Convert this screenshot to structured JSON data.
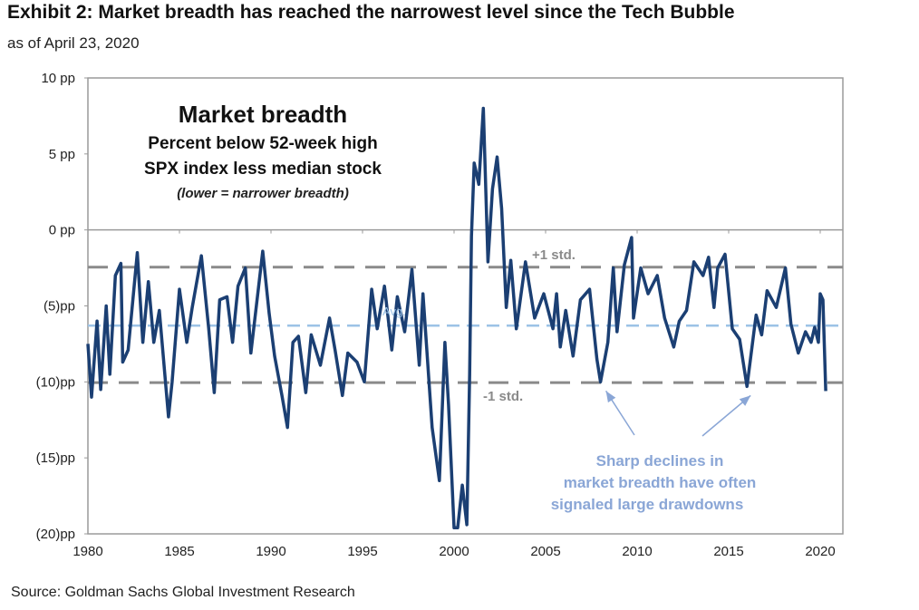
{
  "header": {
    "title": "Exhibit 2: Market breadth has reached the narrowest level since the Tech Bubble",
    "subtitle": "as of April 23, 2020"
  },
  "footer": {
    "source": "Source: Goldman Sachs Global Investment Research"
  },
  "colors": {
    "series": "#1b3f73",
    "avg": "#9cc3e6",
    "std": "#8a8a8a",
    "annotation": "#8aa6d6"
  },
  "chart_data": {
    "type": "line",
    "title": "Market breadth",
    "subtitle_lines": [
      "Percent below 52-week high",
      "SPX index less median stock",
      "(lower = narrower  breadth)"
    ],
    "xlabel": "",
    "ylabel": "",
    "xlim": [
      1980,
      2021.2
    ],
    "ylim": [
      -20,
      10
    ],
    "x_ticks": [
      1980,
      1985,
      1990,
      1995,
      2000,
      2005,
      2010,
      2015,
      2020
    ],
    "x_tick_labels": [
      "1980",
      "1985",
      "1990",
      "1995",
      "2000",
      "2005",
      "2010",
      "2015",
      "2020"
    ],
    "y_ticks": [
      10,
      5,
      0,
      -5,
      -10,
      -15,
      -20
    ],
    "y_tick_labels": [
      "10 pp",
      "5 pp",
      "0 pp",
      "(5)pp",
      "(10)pp",
      "(15)pp",
      "(20)pp"
    ],
    "reference_lines": [
      {
        "name": "+1 std.",
        "label": "+1 std.",
        "value": -2.45
      },
      {
        "name": "Avg.",
        "label": "Avg.",
        "value": -6.3
      },
      {
        "name": "-1 std.",
        "label": "-1 std.",
        "value": -10.05
      }
    ],
    "annotation": {
      "lines": [
        "Sharp declines in",
        "market breadth have often",
        "signaled large drawdowns"
      ],
      "arrow_targets": [
        [
          2008.0,
          -10.0
        ],
        [
          2016.0,
          -10.3
        ]
      ]
    },
    "series": [
      {
        "name": "Market breadth",
        "x": [
          1980.0,
          1980.2,
          1980.5,
          1980.7,
          1981.0,
          1981.2,
          1981.5,
          1981.8,
          1981.9,
          1982.2,
          1982.7,
          1983.0,
          1983.3,
          1983.6,
          1983.9,
          1984.4,
          1984.6,
          1985.0,
          1985.4,
          1985.7,
          1986.2,
          1986.6,
          1986.9,
          1987.2,
          1987.6,
          1987.9,
          1988.2,
          1988.6,
          1988.9,
          1989.55,
          1989.9,
          1990.2,
          1990.6,
          1990.9,
          1991.2,
          1991.5,
          1991.9,
          1992.2,
          1992.7,
          1993.2,
          1993.5,
          1993.9,
          1994.2,
          1994.7,
          1995.1,
          1995.5,
          1995.8,
          1996.2,
          1996.6,
          1996.9,
          1997.3,
          1997.7,
          1998.1,
          1998.3,
          1998.8,
          1999.2,
          1999.5,
          1999.7,
          2000.0,
          2000.2,
          2000.45,
          2000.7,
          2000.85,
          2000.95,
          2001.1,
          2001.35,
          2001.6,
          2001.85,
          2002.1,
          2002.35,
          2002.6,
          2002.85,
          2003.1,
          2003.4,
          2003.9,
          2004.4,
          2004.9,
          2005.4,
          2005.6,
          2005.8,
          2006.1,
          2006.5,
          2006.9,
          2007.4,
          2007.8,
          2008.0,
          2008.4,
          2008.7,
          2008.9,
          2009.3,
          2009.7,
          2009.8,
          2010.2,
          2010.6,
          2011.1,
          2011.5,
          2012.0,
          2012.3,
          2012.7,
          2013.1,
          2013.6,
          2013.9,
          2014.2,
          2014.4,
          2014.8,
          2015.2,
          2015.6,
          2016.0,
          2016.4,
          2016.5,
          2016.8,
          2017.1,
          2017.6,
          2018.1,
          2018.4,
          2018.8,
          2019.2,
          2019.5,
          2019.7,
          2019.9,
          2020.0,
          2020.15,
          2020.3
        ],
        "y": [
          -7.5,
          -11,
          -6,
          -10.5,
          -5,
          -9.5,
          -3,
          -2.2,
          -8.7,
          -7.9,
          -1.5,
          -7.4,
          -3.4,
          -7.4,
          -5.3,
          -12.3,
          -10,
          -3.9,
          -7.4,
          -5.1,
          -1.7,
          -6.5,
          -10.7,
          -4.6,
          -4.4,
          -7.4,
          -3.7,
          -2.5,
          -8.1,
          -1.4,
          -5.5,
          -8.3,
          -10.9,
          -13,
          -7.4,
          -7,
          -10.7,
          -6.9,
          -8.9,
          -5.8,
          -7.9,
          -10.9,
          -8.1,
          -8.7,
          -10,
          -3.9,
          -6.5,
          -3.7,
          -7.9,
          -4.4,
          -6.7,
          -2.6,
          -8.9,
          -4.2,
          -13,
          -16.5,
          -7.4,
          -11.5,
          -19.6,
          -19.6,
          -16.8,
          -19.4,
          -9.5,
          -0.4,
          4.4,
          3.0,
          8.0,
          -2.1,
          2.7,
          4.8,
          1.4,
          -5.1,
          -2,
          -6.5,
          -2.1,
          -5.8,
          -4.2,
          -6.5,
          -4.2,
          -7.7,
          -5.3,
          -8.3,
          -4.6,
          -3.9,
          -8.5,
          -10,
          -7.4,
          -2.5,
          -6.7,
          -2.3,
          -0.5,
          -5.8,
          -2.5,
          -4.2,
          -3,
          -5.8,
          -7.7,
          -6,
          -5.3,
          -2.1,
          -3,
          -1.8,
          -5.1,
          -2.5,
          -1.6,
          -6.5,
          -7.2,
          -10.3,
          -6.5,
          -5.6,
          -6.9,
          -4.0,
          -5.1,
          -2.5,
          -6.2,
          -8.1,
          -6.7,
          -7.4,
          -6.4,
          -7.4,
          -4.2,
          -4.6,
          -10.6
        ]
      }
    ]
  }
}
